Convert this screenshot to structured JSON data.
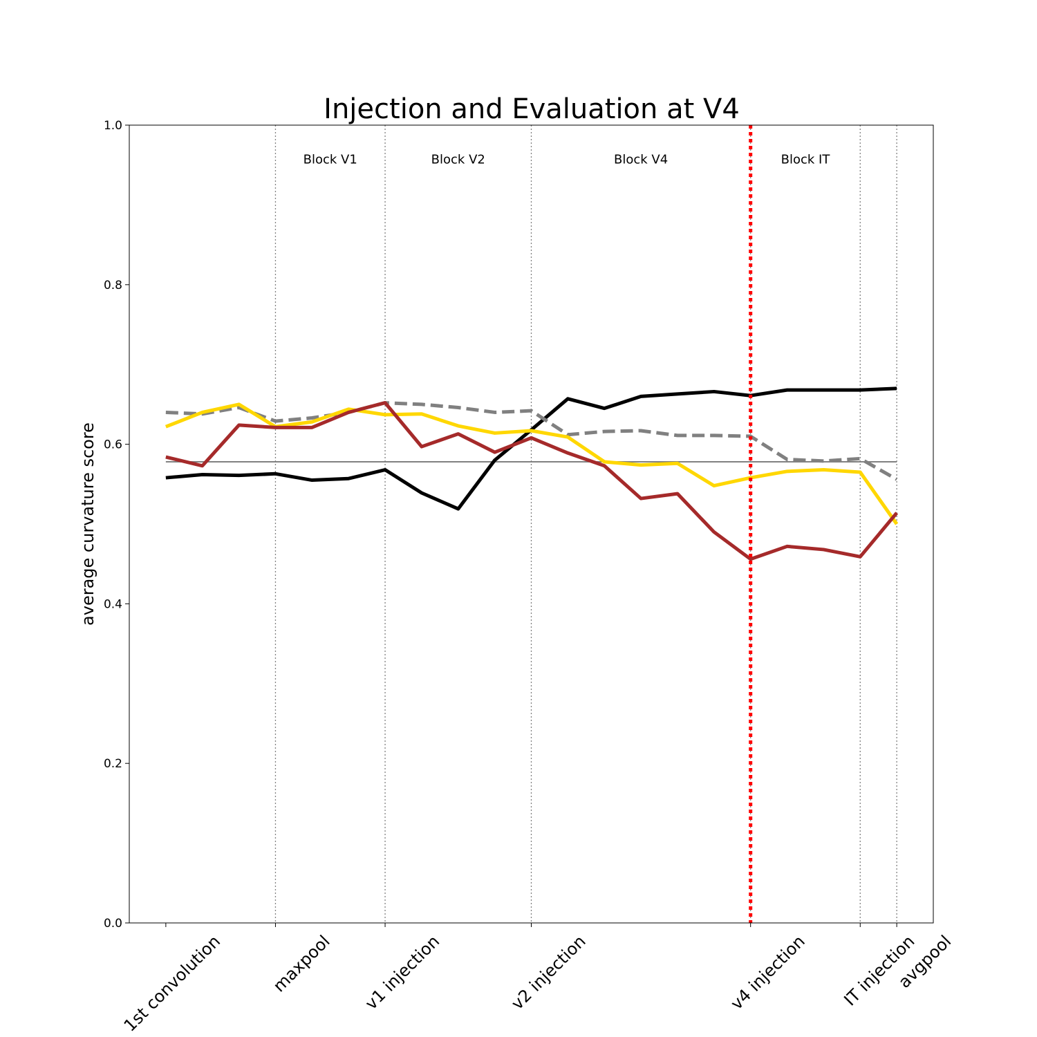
{
  "chart_data": {
    "type": "line",
    "title": "Injection and Evaluation at V4",
    "ylabel": "average curvature score",
    "xlabel": "",
    "ylim": [
      0,
      1
    ],
    "yticks": [
      0.0,
      0.2,
      0.4,
      0.6,
      0.8,
      1.0
    ],
    "ytick_labels": [
      "0.0",
      "0.2",
      "0.4",
      "0.6",
      "0.8",
      "1.0"
    ],
    "xlim": [
      -1,
      21
    ],
    "x": [
      0,
      1,
      2,
      3,
      4,
      5,
      6,
      7,
      8,
      9,
      10,
      11,
      12,
      13,
      14,
      15,
      16,
      17,
      18,
      19,
      20
    ],
    "xtick_positions": [
      0,
      3,
      6,
      10,
      16,
      19,
      20
    ],
    "xtick_labels": [
      "1st convolution",
      "maxpool",
      "v1 injection",
      "v2 injection",
      "v4 injection",
      "IT injection",
      "avgpool"
    ],
    "dividers": [
      3,
      6,
      10,
      16,
      19,
      20
    ],
    "injection_line": 16,
    "block_labels": [
      {
        "text": "Block V1",
        "x": 4.5
      },
      {
        "text": "Block V2",
        "x": 8
      },
      {
        "text": "Block V4",
        "x": 13
      },
      {
        "text": "Block IT",
        "x": 17.5
      }
    ],
    "reference_line": 0.578,
    "grid": false,
    "colors": {
      "black": "#000000",
      "gray": "#808080",
      "gold": "#FFD700",
      "brown": "#A52A2A",
      "red": "#FF0000",
      "reference": "#808080"
    },
    "series": [
      {
        "color": "#000000",
        "style": "solid",
        "values": [
          0.558,
          0.562,
          0.561,
          0.563,
          0.555,
          0.557,
          0.568,
          0.539,
          0.519,
          0.58,
          0.618,
          0.657,
          0.645,
          0.66,
          0.663,
          0.666,
          0.661,
          0.668,
          0.668,
          0.668,
          0.67
        ]
      },
      {
        "color": "#808080",
        "style": "dashed",
        "values": [
          0.64,
          0.638,
          0.646,
          0.629,
          0.633,
          0.64,
          0.652,
          0.65,
          0.646,
          0.64,
          0.642,
          0.612,
          0.616,
          0.617,
          0.611,
          0.611,
          0.61,
          0.581,
          0.579,
          0.582,
          0.556
        ]
      },
      {
        "color": "#FFD700",
        "style": "solid",
        "values": [
          0.622,
          0.64,
          0.65,
          0.622,
          0.628,
          0.644,
          0.637,
          0.638,
          0.623,
          0.614,
          0.617,
          0.609,
          0.578,
          0.574,
          0.576,
          0.548,
          0.558,
          0.566,
          0.568,
          0.565,
          0.5
        ]
      },
      {
        "color": "#A52A2A",
        "style": "solid",
        "values": [
          0.584,
          0.573,
          0.624,
          0.621,
          0.621,
          0.64,
          0.652,
          0.597,
          0.613,
          0.59,
          0.608,
          0.589,
          0.573,
          0.532,
          0.538,
          0.49,
          0.456,
          0.472,
          0.468,
          0.459,
          0.514
        ]
      }
    ]
  }
}
